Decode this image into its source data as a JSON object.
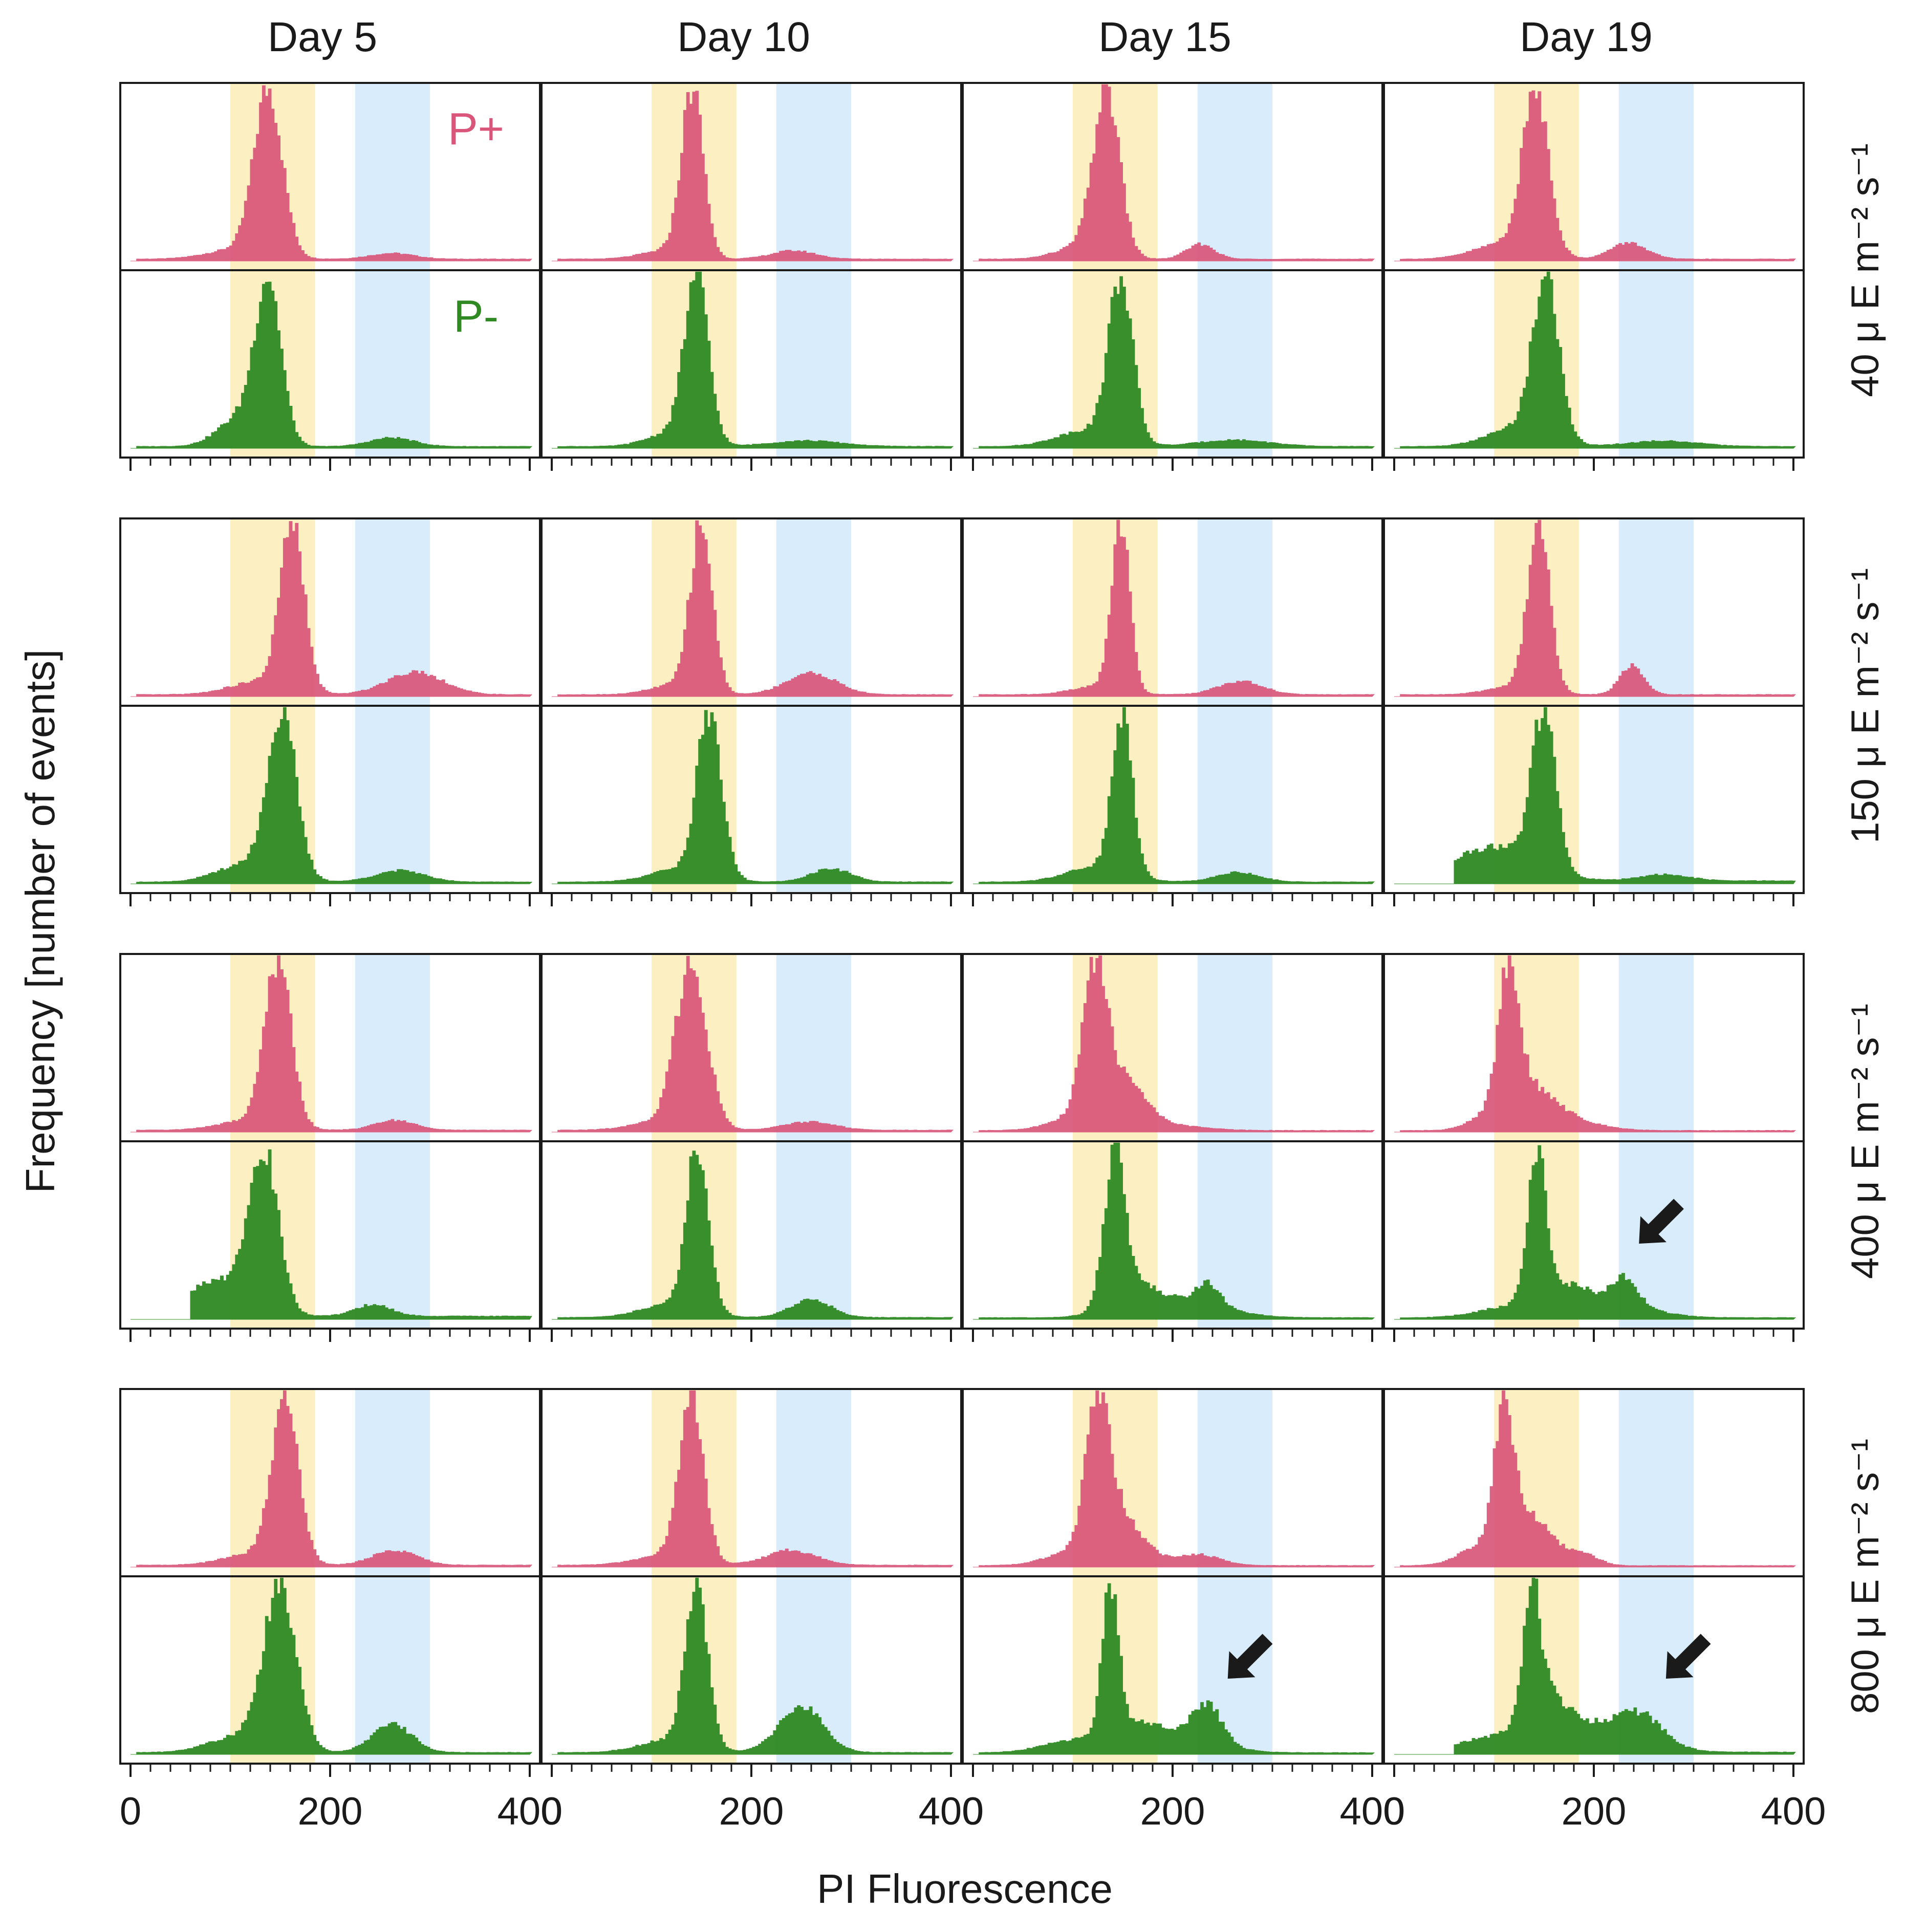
{
  "colors": {
    "p_plus": "#d9567a",
    "p_minus": "#2f8a23",
    "g1_band": "#fcefc1",
    "g2_band": "#d9ecfb",
    "axis": "#1a1a1a"
  },
  "chart_data": {
    "type": "histogram-grid",
    "xlabel": "PI Fluorescence",
    "ylabel": "Frequency [number of events]",
    "xlim": [
      0,
      400
    ],
    "x_ticks": [
      0,
      200,
      400
    ],
    "x_minor_step": 20,
    "bands": [
      {
        "name": "g1",
        "range": [
          100,
          185
        ]
      },
      {
        "name": "g2",
        "range": [
          225,
          300
        ]
      }
    ],
    "columns": [
      "Day 5",
      "Day 10",
      "Day 15",
      "Day 19"
    ],
    "rows": [
      {
        "label": "40 μ E m⁻² s⁻¹"
      },
      {
        "label": "150 μ E m⁻² s⁻¹"
      },
      {
        "label": "400 μ E m⁻² s⁻¹"
      },
      {
        "label": "800 μ E m⁻² s⁻¹"
      }
    ],
    "series_labels": [
      {
        "name": "P+",
        "series": "p_plus"
      },
      {
        "name": "P-",
        "series": "p_minus"
      }
    ],
    "histograms": [
      [
        {
          "p_plus": {
            "start": 5,
            "base": 0.012,
            "peaks": [
              [
                138,
                14,
                1.0
              ],
              [
                108,
                30,
                0.06
              ],
              [
                262,
                22,
                0.035
              ]
            ]
          },
          "p_minus": {
            "start": 5,
            "base": 0.012,
            "peaks": [
              [
                138,
                13,
                1.0
              ],
              [
                110,
                22,
                0.18
              ],
              [
                262,
                22,
                0.055
              ]
            ]
          }
        },
        {
          "p_plus": {
            "start": 5,
            "base": 0.012,
            "peaks": [
              [
                141,
                11,
                1.0
              ],
              [
                115,
                25,
                0.05
              ],
              [
                242,
                22,
                0.05
              ]
            ]
          },
          "p_minus": {
            "start": 5,
            "base": 0.012,
            "peaks": [
              [
                145,
                12,
                1.0
              ],
              [
                120,
                24,
                0.08
              ],
              [
                255,
                35,
                0.035
              ]
            ]
          }
        },
        {
          "p_plus": {
            "start": 5,
            "base": 0.012,
            "peaks": [
              [
                134,
                13,
                1.0
              ],
              [
                110,
                25,
                0.08
              ],
              [
                228,
                14,
                0.09
              ]
            ]
          },
          "p_minus": {
            "start": 5,
            "base": 0.012,
            "peaks": [
              [
                148,
                12,
                1.0
              ],
              [
                115,
                30,
                0.1
              ],
              [
                262,
                35,
                0.04
              ]
            ]
          }
        },
        {
          "p_plus": {
            "start": 5,
            "base": 0.012,
            "peaks": [
              [
                142,
                13,
                1.0
              ],
              [
                112,
                30,
                0.1
              ],
              [
                235,
                18,
                0.1
              ]
            ]
          },
          "p_minus": {
            "start": 5,
            "base": 0.012,
            "peaks": [
              [
                152,
                13,
                1.0
              ],
              [
                125,
                30,
                0.12
              ],
              [
                270,
                35,
                0.035
              ]
            ]
          }
        }
      ],
      [
        {
          "p_plus": {
            "start": 5,
            "base": 0.012,
            "peaks": [
              [
                162,
                12,
                1.0
              ],
              [
                130,
                30,
                0.08
              ],
              [
                285,
                28,
                0.14
              ]
            ]
          },
          "p_minus": {
            "start": 5,
            "base": 0.012,
            "peaks": [
              [
                152,
                14,
                1.0
              ],
              [
                120,
                30,
                0.12
              ],
              [
                270,
                25,
                0.07
              ]
            ]
          }
        },
        {
          "p_plus": {
            "start": 5,
            "base": 0.012,
            "peaks": [
              [
                150,
                11,
                1.0
              ],
              [
                125,
                25,
                0.06
              ],
              [
                260,
                25,
                0.13
              ]
            ]
          },
          "p_minus": {
            "start": 5,
            "base": 0.012,
            "peaks": [
              [
                158,
                12,
                1.0
              ],
              [
                130,
                30,
                0.08
              ],
              [
                280,
                20,
                0.08
              ]
            ]
          }
        },
        {
          "p_plus": {
            "start": 5,
            "base": 0.012,
            "peaks": [
              [
                148,
                9,
                1.0
              ],
              [
                125,
                25,
                0.05
              ],
              [
                268,
                22,
                0.08
              ]
            ]
          },
          "p_minus": {
            "start": 5,
            "base": 0.012,
            "peaks": [
              [
                150,
                10,
                1.0
              ],
              [
                125,
                30,
                0.1
              ],
              [
                265,
                22,
                0.06
              ]
            ]
          }
        },
        {
          "p_plus": {
            "start": 5,
            "base": 0.012,
            "peaks": [
              [
                145,
                11,
                1.0
              ],
              [
                120,
                25,
                0.05
              ],
              [
                238,
                12,
                0.17
              ]
            ]
          },
          "p_minus": {
            "start": 60,
            "base": 0.02,
            "peaks": [
              [
                150,
                12,
                1.0
              ],
              [
                100,
                40,
                0.22
              ],
              [
                270,
                25,
                0.04
              ]
            ]
          }
        }
      ],
      [
        {
          "p_plus": {
            "start": 5,
            "base": 0.012,
            "peaks": [
              [
                148,
                13,
                1.0
              ],
              [
                120,
                30,
                0.06
              ],
              [
                265,
                20,
                0.06
              ]
            ]
          },
          "p_minus": {
            "start": 60,
            "base": 0.02,
            "peaks": [
              [
                133,
                15,
                1.0
              ],
              [
                85,
                25,
                0.22
              ],
              [
                243,
                18,
                0.07
              ]
            ]
          }
        },
        {
          "p_plus": {
            "start": 5,
            "base": 0.012,
            "peaks": [
              [
                140,
                15,
                1.0
              ],
              [
                115,
                30,
                0.06
              ],
              [
                258,
                25,
                0.05
              ]
            ]
          },
          "p_minus": {
            "start": 5,
            "base": 0.012,
            "peaks": [
              [
                146,
                11,
                1.0
              ],
              [
                120,
                30,
                0.08
              ],
              [
                260,
                20,
                0.11
              ]
            ]
          }
        },
        {
          "p_plus": {
            "start": 5,
            "base": 0.012,
            "peaks": [
              [
                122,
                12,
                1.0
              ],
              [
                150,
                22,
                0.35
              ],
              [
                100,
                25,
                0.08
              ],
              [
                205,
                30,
                0.03
              ]
            ]
          },
          "p_minus": {
            "start": 5,
            "base": 0.012,
            "peaks": [
              [
                142,
                10,
                1.0
              ],
              [
                160,
                25,
                0.18
              ],
              [
                235,
                12,
                0.14
              ],
              [
                215,
                40,
                0.1
              ]
            ]
          }
        },
        {
          "p_plus": {
            "start": 5,
            "base": 0.012,
            "peaks": [
              [
                115,
                10,
                1.0
              ],
              [
                135,
                25,
                0.3
              ],
              [
                180,
                30,
                0.06
              ],
              [
                95,
                20,
                0.08
              ]
            ]
          },
          "p_minus": {
            "start": 5,
            "base": 0.012,
            "peaks": [
              [
                143,
                9,
                1.0
              ],
              [
                165,
                25,
                0.15
              ],
              [
                232,
                12,
                0.17
              ],
              [
                210,
                40,
                0.12
              ],
              [
                110,
                30,
                0.06
              ]
            ]
          }
        }
      ],
      [
        {
          "p_plus": {
            "start": 5,
            "base": 0.012,
            "peaks": [
              [
                155,
                13,
                1.0
              ],
              [
                125,
                30,
                0.07
              ],
              [
                265,
                22,
                0.09
              ]
            ]
          },
          "p_minus": {
            "start": 5,
            "base": 0.012,
            "peaks": [
              [
                150,
                16,
                1.0
              ],
              [
                110,
                30,
                0.1
              ],
              [
                262,
                20,
                0.17
              ]
            ]
          }
        },
        {
          "p_plus": {
            "start": 5,
            "base": 0.012,
            "peaks": [
              [
                140,
                12,
                1.0
              ],
              [
                115,
                30,
                0.06
              ],
              [
                240,
                25,
                0.09
              ]
            ]
          },
          "p_minus": {
            "start": 5,
            "base": 0.012,
            "peaks": [
              [
                145,
                11,
                1.0
              ],
              [
                120,
                30,
                0.08
              ],
              [
                250,
                22,
                0.28
              ]
            ]
          }
        },
        {
          "p_plus": {
            "start": 5,
            "base": 0.012,
            "peaks": [
              [
                125,
                12,
                1.0
              ],
              [
                148,
                22,
                0.35
              ],
              [
                95,
                25,
                0.08
              ],
              [
                225,
                22,
                0.08
              ]
            ]
          },
          "p_minus": {
            "start": 5,
            "base": 0.012,
            "peaks": [
              [
                138,
                8,
                1.0
              ],
              [
                160,
                25,
                0.15
              ],
              [
                235,
                14,
                0.24
              ],
              [
                210,
                35,
                0.12
              ],
              [
                100,
                30,
                0.08
              ]
            ]
          }
        },
        {
          "p_plus": {
            "start": 5,
            "base": 0.012,
            "peaks": [
              [
                110,
                9,
                1.0
              ],
              [
                130,
                25,
                0.42
              ],
              [
                190,
                15,
                0.08
              ],
              [
                80,
                20,
                0.1
              ]
            ]
          },
          "p_minus": {
            "start": 60,
            "base": 0.02,
            "peaks": [
              [
                138,
                8,
                1.0
              ],
              [
                150,
                20,
                0.45
              ],
              [
                210,
                40,
                0.25
              ],
              [
                250,
                20,
                0.18
              ],
              [
                95,
                30,
                0.12
              ]
            ]
          }
        }
      ]
    ],
    "annotations": [
      {
        "type": "arrow",
        "row": 2,
        "col": 3,
        "series": "p_minus",
        "target_x": 235
      },
      {
        "type": "arrow",
        "row": 3,
        "col": 2,
        "series": "p_minus",
        "target_x": 245
      },
      {
        "type": "arrow",
        "row": 3,
        "col": 3,
        "series": "p_minus",
        "target_x": 262
      }
    ]
  }
}
